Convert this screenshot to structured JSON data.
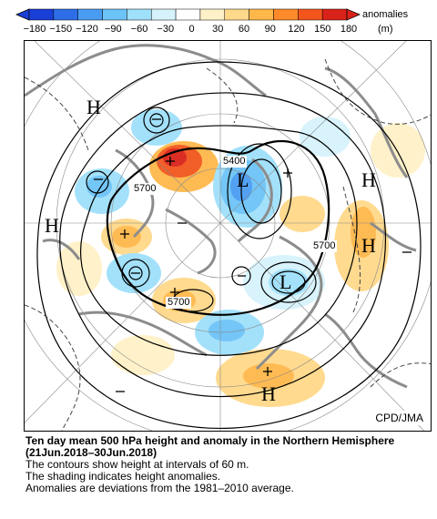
{
  "colorbar": {
    "ticks": [
      "−180",
      "−150",
      "−120",
      "−90",
      "−60",
      "−30",
      "0",
      "30",
      "60",
      "90",
      "120",
      "150",
      "180"
    ],
    "title": "anomalies",
    "unit": "(m)",
    "colors": [
      "#1a3fd6",
      "#2d6ee8",
      "#4a9cf2",
      "#6cc3f7",
      "#9fe0fb",
      "#d6f3fc",
      "#ffffff",
      "#fff1c7",
      "#ffd98a",
      "#ffb84a",
      "#ff8a2a",
      "#f2561d",
      "#d9231a"
    ]
  },
  "map": {
    "high_labels": [
      "H",
      "H",
      "H",
      "H",
      "H"
    ],
    "low_labels": [
      "L",
      "L"
    ],
    "contour_labels": [
      "5400",
      "5700",
      "5700",
      "5700"
    ],
    "credit": "CPD/JMA"
  },
  "caption": {
    "title": "Ten day mean 500 hPa height and anomaly in the Northern Hemisphere (21Jun.2018–30Jun.2018)",
    "lines": [
      "The contours show height at intervals of 60 m.",
      "The shading indicates height anomalies.",
      "Anomalies are deviations from the 1981–2010 average."
    ]
  }
}
